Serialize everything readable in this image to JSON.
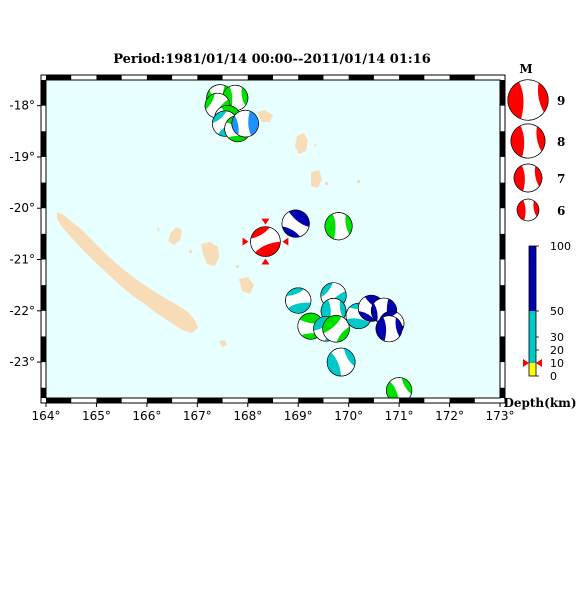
{
  "title": "Period:1981/01/14 00:00--2011/01/14 01:16",
  "map": {
    "lon_range": [
      164,
      173
    ],
    "lat_range": [
      -23.7,
      -17.5
    ],
    "lon_ticks": [
      164,
      165,
      166,
      167,
      168,
      169,
      170,
      171,
      172,
      173
    ],
    "lat_ticks": [
      -18,
      -19,
      -20,
      -21,
      -22,
      -23
    ],
    "degree_symbol": "°",
    "ocean_color": "#e8ffff",
    "land_color": "#f8dcb8"
  },
  "magnitude_legend": {
    "title": "M",
    "entries": [
      {
        "label": "9",
        "mag": 9
      },
      {
        "label": "8",
        "mag": 8
      },
      {
        "label": "7",
        "mag": 7
      },
      {
        "label": "6",
        "mag": 6
      }
    ]
  },
  "depth_legend": {
    "title": "Depth(km)",
    "tick_labels": [
      "100",
      "50",
      "30",
      "20",
      "10",
      "0"
    ],
    "tick_values": [
      100,
      50,
      30,
      20,
      10,
      0
    ],
    "colors": {
      "shallow": "#ffff00",
      "0_to_10": "#ffff00",
      "10_to_30": "#00c8c8",
      "30_to_60": "#00c8ff",
      "60_plus": "#0000b0"
    },
    "marker_depth": 10
  },
  "events": [
    {
      "lon": 167.45,
      "lat": -17.85,
      "mag": 6.8,
      "color": "#00e000",
      "strike": 20
    },
    {
      "lon": 167.75,
      "lat": -17.85,
      "mag": 6.6,
      "color": "#00e000",
      "strike": 200
    },
    {
      "lon": 167.4,
      "lat": -18.0,
      "mag": 6.5,
      "color": "#00e000",
      "strike": 60
    },
    {
      "lon": 167.6,
      "lat": -18.25,
      "mag": 6.7,
      "color": "#00e000",
      "strike": 330
    },
    {
      "lon": 167.55,
      "lat": -18.35,
      "mag": 6.6,
      "color": "#00c8c8",
      "strike": 80
    },
    {
      "lon": 167.8,
      "lat": -18.45,
      "mag": 6.7,
      "color": "#00e000",
      "strike": 300
    },
    {
      "lon": 167.95,
      "lat": -18.35,
      "mag": 6.8,
      "color": "#1e90ff",
      "strike": 20
    },
    {
      "lon": 168.35,
      "lat": -20.65,
      "mag": 7.3,
      "color": "#ff0000",
      "strike": 90
    },
    {
      "lon": 168.95,
      "lat": -20.3,
      "mag": 6.9,
      "color": "#0000b0",
      "strike": 330
    },
    {
      "lon": 169.8,
      "lat": -20.35,
      "mag": 6.9,
      "color": "#00e000",
      "strike": 200
    },
    {
      "lon": 169.0,
      "lat": -21.8,
      "mag": 6.6,
      "color": "#00c8c8",
      "strike": 100
    },
    {
      "lon": 169.7,
      "lat": -21.7,
      "mag": 6.6,
      "color": "#00c8c8",
      "strike": 70
    },
    {
      "lon": 169.7,
      "lat": -22.0,
      "mag": 6.5,
      "color": "#00c8c8",
      "strike": 200
    },
    {
      "lon": 169.25,
      "lat": -22.3,
      "mag": 6.7,
      "color": "#00e000",
      "strike": 300
    },
    {
      "lon": 169.55,
      "lat": -22.35,
      "mag": 6.5,
      "color": "#00c8c8",
      "strike": 260
    },
    {
      "lon": 169.75,
      "lat": -22.35,
      "mag": 6.8,
      "color": "#00e000",
      "strike": 250
    },
    {
      "lon": 170.2,
      "lat": -22.1,
      "mag": 6.6,
      "color": "#00c8c8",
      "strike": 120
    },
    {
      "lon": 170.45,
      "lat": -21.95,
      "mag": 6.7,
      "color": "#0000b0",
      "strike": 330
    },
    {
      "lon": 170.7,
      "lat": -22.0,
      "mag": 6.6,
      "color": "#0000b0",
      "strike": 20
    },
    {
      "lon": 170.85,
      "lat": -22.25,
      "mag": 6.5,
      "color": "#0000b0",
      "strike": 100
    },
    {
      "lon": 170.8,
      "lat": -22.35,
      "mag": 6.7,
      "color": "#0000b0",
      "strike": 200
    },
    {
      "lon": 169.85,
      "lat": -23.0,
      "mag": 7.0,
      "color": "#00c8c8",
      "strike": 180
    },
    {
      "lon": 171.0,
      "lat": -23.55,
      "mag": 6.6,
      "color": "#00e000",
      "strike": 180
    }
  ],
  "highlighted_event_index": 7
}
